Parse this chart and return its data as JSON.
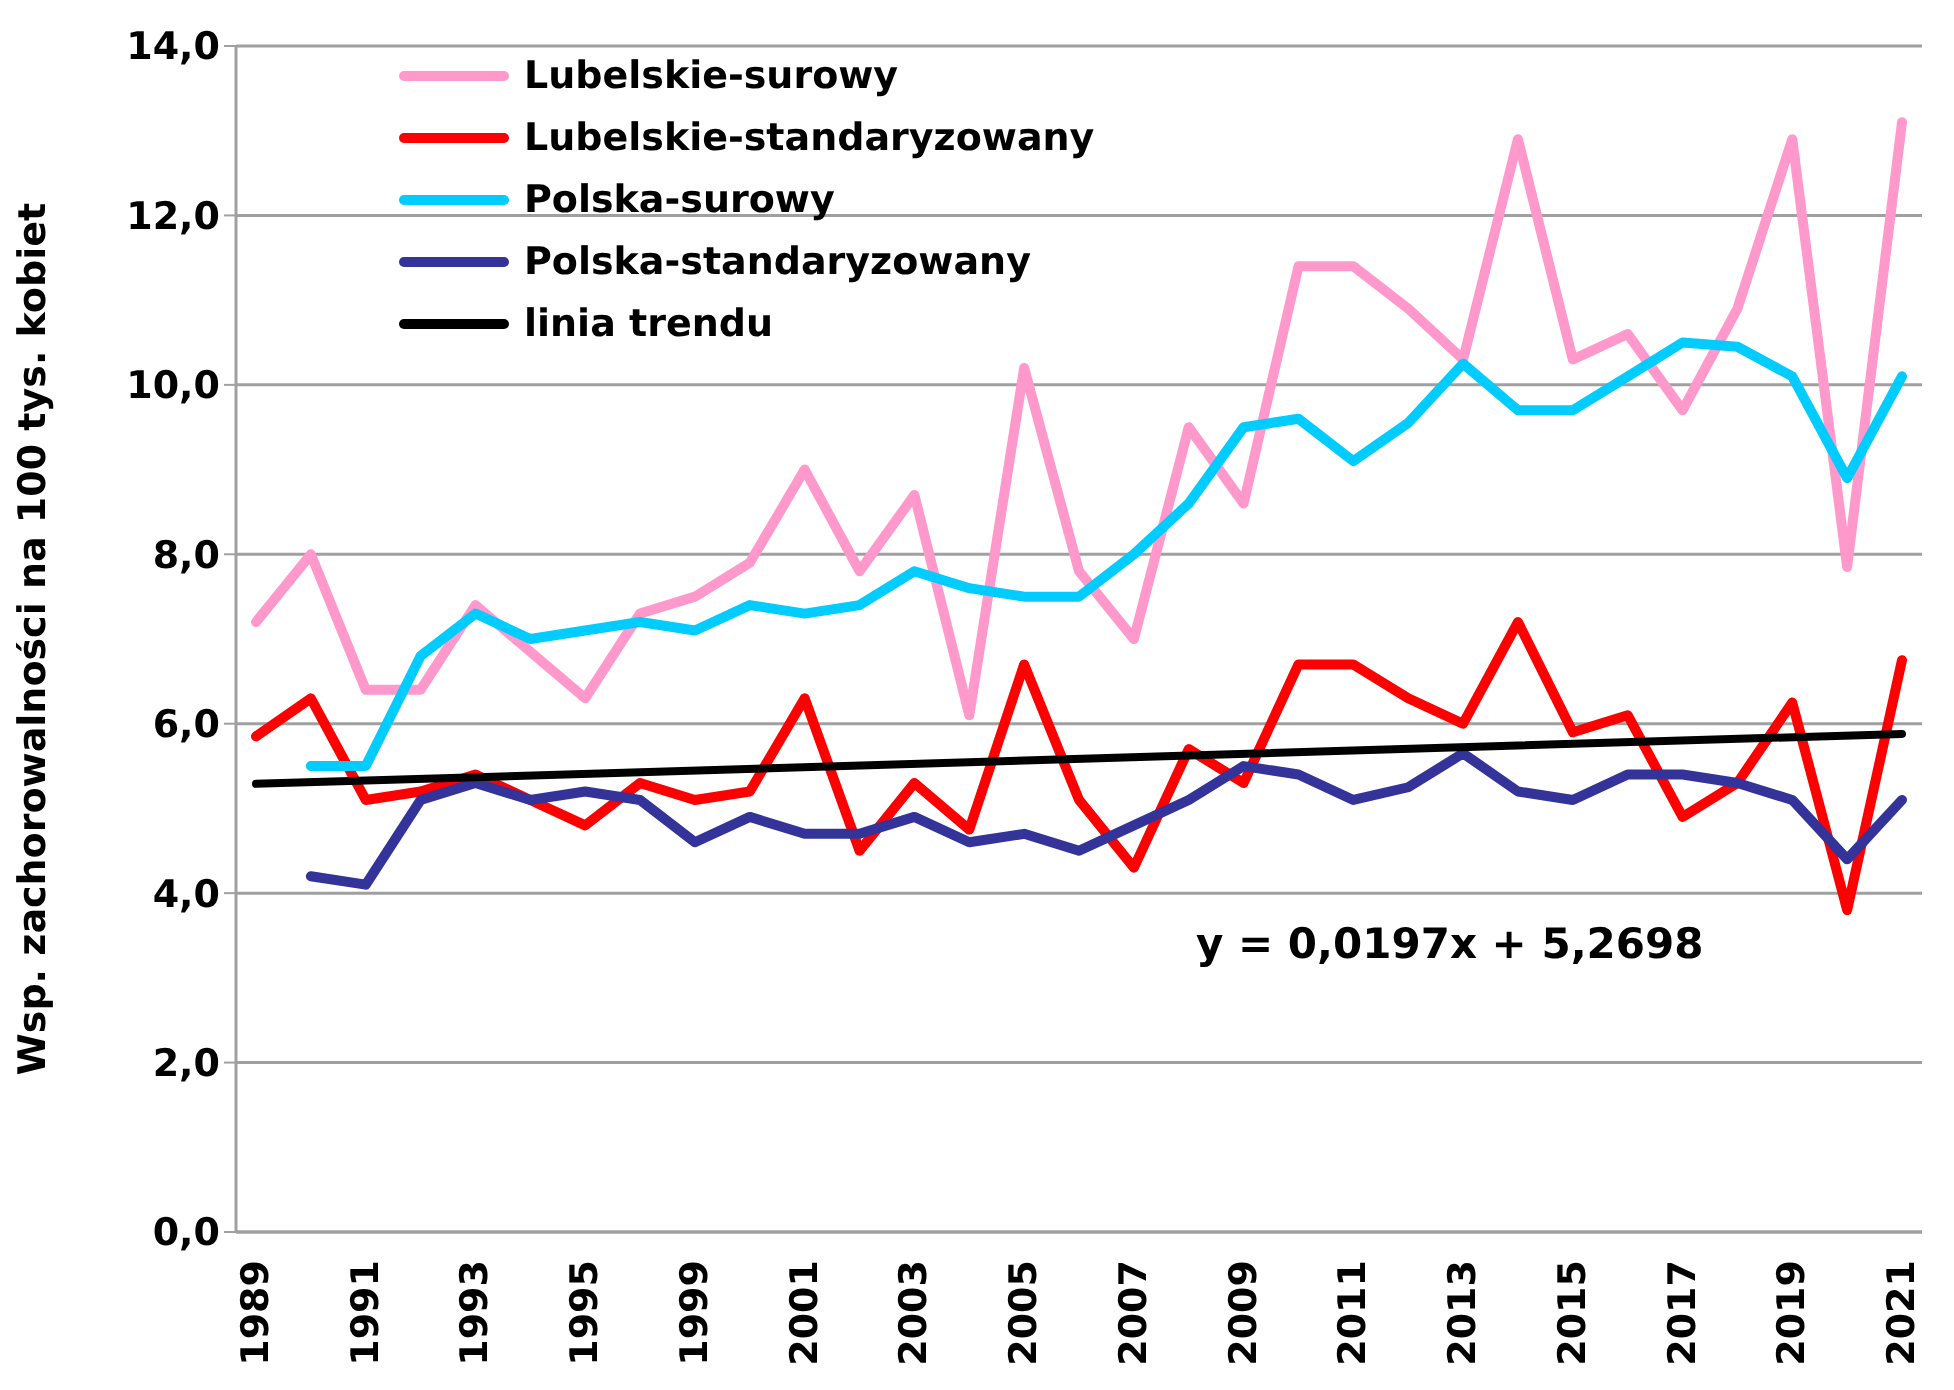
{
  "chart_data": {
    "type": "line",
    "ylabel": "Wsp. zachorowalności na 100 tys. kobiet",
    "categories": [
      "1989",
      null,
      "1991",
      null,
      "1993",
      null,
      "1995",
      null,
      "1999",
      null,
      "2001",
      null,
      "2003",
      null,
      "2005",
      null,
      "2007",
      null,
      "2009",
      null,
      "2011",
      null,
      "2013",
      null,
      "2015",
      null,
      "2017",
      null,
      "2019",
      null,
      "2021"
    ],
    "series": [
      {
        "name": "Lubelskie-surowy",
        "color": "#ff99cc",
        "values": [
          7.2,
          8.0,
          6.4,
          6.4,
          7.4,
          6.85,
          6.3,
          7.3,
          7.5,
          7.9,
          9.0,
          7.8,
          8.7,
          6.1,
          10.2,
          7.8,
          7.0,
          9.5,
          8.6,
          11.4,
          11.4,
          10.9,
          10.3,
          12.9,
          10.3,
          10.6,
          9.7,
          10.9,
          12.9,
          7.85,
          13.1
        ]
      },
      {
        "name": "Lubelskie-standaryzowany",
        "color": "#ff0000",
        "values": [
          5.85,
          6.3,
          5.1,
          5.2,
          5.4,
          5.1,
          4.8,
          5.3,
          5.1,
          5.2,
          6.3,
          4.5,
          5.3,
          4.75,
          6.7,
          5.1,
          4.3,
          5.7,
          5.3,
          6.7,
          6.7,
          6.3,
          6.0,
          7.2,
          5.9,
          6.1,
          4.9,
          5.3,
          6.25,
          3.8,
          6.75
        ]
      },
      {
        "name": "Polska-surowy",
        "color": "#00ccff",
        "values": [
          null,
          5.5,
          5.5,
          6.8,
          7.3,
          7.0,
          7.1,
          7.2,
          7.1,
          7.4,
          7.3,
          7.4,
          7.8,
          7.6,
          7.5,
          7.5,
          8.0,
          8.6,
          9.5,
          9.6,
          9.1,
          9.55,
          10.25,
          9.7,
          9.7,
          10.1,
          10.5,
          10.45,
          10.1,
          8.9,
          10.1
        ]
      },
      {
        "name": "Polska-standaryzowany",
        "color": "#333399",
        "values": [
          null,
          4.2,
          4.1,
          5.1,
          5.3,
          5.1,
          5.2,
          5.1,
          4.6,
          4.9,
          4.7,
          4.7,
          4.9,
          4.6,
          4.7,
          4.5,
          4.8,
          5.1,
          5.5,
          5.4,
          5.1,
          5.25,
          5.65,
          5.2,
          5.1,
          5.4,
          5.4,
          5.3,
          5.1,
          4.4,
          5.1
        ]
      },
      {
        "name": "linia trendu",
        "color": "#000000",
        "values": [
          5.29,
          null,
          null,
          null,
          null,
          null,
          null,
          null,
          null,
          null,
          null,
          null,
          null,
          null,
          null,
          null,
          null,
          null,
          null,
          null,
          null,
          null,
          null,
          null,
          null,
          null,
          null,
          null,
          null,
          null,
          5.88
        ]
      }
    ],
    "ylim": [
      0,
      14
    ],
    "yticks": [
      {
        "value": 0,
        "label": "0,0"
      },
      {
        "value": 2,
        "label": "2,0"
      },
      {
        "value": 4,
        "label": "4,0"
      },
      {
        "value": 6,
        "label": "6,0"
      },
      {
        "value": 8,
        "label": "8,0"
      },
      {
        "value": 10,
        "label": "10,0"
      },
      {
        "value": 12,
        "label": "12,0"
      },
      {
        "value": 14,
        "label": "14,0"
      }
    ],
    "grid": "y",
    "legend": "top left",
    "marker": "none",
    "line_style": "solid",
    "annotations": [
      "y = 0,0197x + 5,2698"
    ]
  }
}
